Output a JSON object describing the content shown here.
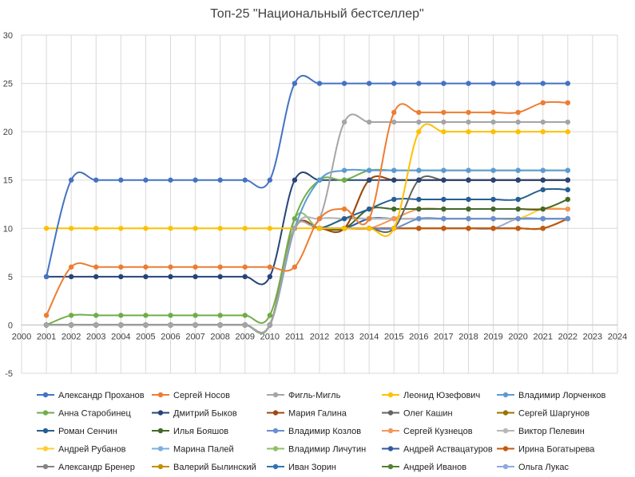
{
  "chart_data": {
    "type": "line",
    "title": "Топ-25 \"Национальный бестселлер\"",
    "xlabel": "",
    "ylabel": "",
    "xlim": [
      2000,
      2024
    ],
    "ylim": [
      -5,
      30
    ],
    "x_ticks": [
      2000,
      2001,
      2002,
      2003,
      2004,
      2005,
      2006,
      2007,
      2008,
      2009,
      2010,
      2011,
      2012,
      2013,
      2014,
      2015,
      2016,
      2017,
      2018,
      2019,
      2020,
      2021,
      2022,
      2023,
      2024
    ],
    "y_ticks": [
      -5,
      0,
      5,
      10,
      15,
      20,
      25,
      30
    ],
    "grid": true,
    "legend_position": "bottom",
    "x": [
      2001,
      2002,
      2003,
      2004,
      2005,
      2006,
      2007,
      2008,
      2009,
      2010,
      2011,
      2012,
      2013,
      2014,
      2015,
      2016,
      2017,
      2018,
      2019,
      2020,
      2021,
      2022
    ],
    "series": [
      {
        "name": "Александр Проханов",
        "color": "#4472C4",
        "values": [
          5,
          15,
          15,
          15,
          15,
          15,
          15,
          15,
          15,
          15,
          25,
          25,
          25,
          25,
          25,
          25,
          25,
          25,
          25,
          25,
          25,
          25
        ]
      },
      {
        "name": "Сергей Носов",
        "color": "#ED7D31",
        "values": [
          1,
          6,
          6,
          6,
          6,
          6,
          6,
          6,
          6,
          6,
          6,
          11,
          12,
          11,
          22,
          22,
          22,
          22,
          22,
          22,
          23,
          23
        ]
      },
      {
        "name": "Фигль-Мигль",
        "color": "#A5A5A5",
        "values": [
          0,
          0,
          0,
          0,
          0,
          0,
          0,
          0,
          0,
          0,
          10,
          11,
          21,
          21,
          21,
          21,
          21,
          21,
          21,
          21,
          21,
          21
        ]
      },
      {
        "name": "Леонид Юзефович",
        "color": "#FFC000",
        "values": [
          10,
          10,
          10,
          10,
          10,
          10,
          10,
          10,
          10,
          10,
          10,
          10,
          10,
          10,
          10,
          20,
          20,
          20,
          20,
          20,
          20,
          20
        ]
      },
      {
        "name": "Владимир Лорченков",
        "color": "#5B9BD5",
        "values": [
          0,
          0,
          0,
          0,
          0,
          0,
          0,
          0,
          0,
          0,
          10,
          15,
          16,
          16,
          16,
          16,
          16,
          16,
          16,
          16,
          16,
          16
        ]
      },
      {
        "name": "Анна Старобинец",
        "color": "#70AD47",
        "values": [
          0,
          1,
          1,
          1,
          1,
          1,
          1,
          1,
          1,
          1,
          11,
          15,
          15,
          16,
          16,
          16,
          16,
          16,
          16,
          16,
          16,
          16
        ]
      },
      {
        "name": "Дмитрий Быков",
        "color": "#264478",
        "values": [
          5,
          5,
          5,
          5,
          5,
          5,
          5,
          5,
          5,
          5,
          15,
          15,
          15,
          15,
          15,
          15,
          15,
          15,
          15,
          15,
          15,
          15
        ]
      },
      {
        "name": "Мария Галина",
        "color": "#9E480E",
        "values": [
          0,
          0,
          0,
          0,
          0,
          0,
          0,
          0,
          0,
          0,
          10,
          10,
          10,
          15,
          15,
          15,
          15,
          15,
          15,
          15,
          15,
          15
        ]
      },
      {
        "name": "Олег Кашин",
        "color": "#636363",
        "values": [
          0,
          0,
          0,
          0,
          0,
          0,
          0,
          0,
          0,
          0,
          10,
          10,
          10,
          10,
          10,
          15,
          15,
          15,
          15,
          15,
          15,
          15
        ]
      },
      {
        "name": "Сергей Шаргунов",
        "color": "#997300",
        "values": [
          0,
          0,
          0,
          0,
          0,
          0,
          0,
          0,
          0,
          0,
          10,
          10,
          10,
          15,
          15,
          15,
          15,
          15,
          15,
          15,
          15,
          15
        ]
      },
      {
        "name": "Роман Сенчин",
        "color": "#255E91",
        "values": [
          0,
          0,
          0,
          0,
          0,
          0,
          0,
          0,
          0,
          0,
          10,
          10,
          11,
          12,
          13,
          13,
          13,
          13,
          13,
          13,
          14,
          14
        ]
      },
      {
        "name": "Илья Бояшов",
        "color": "#43682B",
        "values": [
          0,
          0,
          0,
          0,
          0,
          0,
          0,
          0,
          0,
          0,
          10,
          10,
          10,
          12,
          12,
          12,
          12,
          12,
          12,
          12,
          12,
          13
        ]
      },
      {
        "name": "Владимир Козлов",
        "color": "#698ED0",
        "values": [
          0,
          0,
          0,
          0,
          0,
          0,
          0,
          0,
          0,
          0,
          10,
          10,
          10,
          10,
          10,
          11,
          11,
          11,
          11,
          11,
          11,
          11
        ]
      },
      {
        "name": "Сергей Кузнецов",
        "color": "#F1975A",
        "values": [
          0,
          0,
          0,
          0,
          0,
          0,
          0,
          0,
          0,
          0,
          10,
          10,
          10,
          10,
          11,
          12,
          12,
          12,
          12,
          12,
          12,
          12
        ]
      },
      {
        "name": "Виктор Пелевин",
        "color": "#B7B7B7",
        "values": [
          0,
          0,
          0,
          0,
          0,
          0,
          0,
          0,
          0,
          0,
          10,
          11,
          11,
          11,
          11,
          11,
          11,
          11,
          11,
          11,
          11,
          11
        ]
      },
      {
        "name": "Андрей Рубанов",
        "color": "#FFCD33",
        "values": [
          0,
          0,
          0,
          0,
          0,
          0,
          0,
          0,
          0,
          0,
          10,
          10,
          10,
          10,
          10,
          11,
          11,
          11,
          11,
          11,
          12,
          12
        ]
      },
      {
        "name": "Марина Палей",
        "color": "#7CAFDD",
        "values": [
          0,
          0,
          0,
          0,
          0,
          0,
          0,
          0,
          0,
          0,
          10,
          11,
          11,
          11,
          11,
          11,
          11,
          11,
          11,
          11,
          11,
          11
        ]
      },
      {
        "name": "Владимир Личутин",
        "color": "#8CC168",
        "values": [
          0,
          0,
          0,
          0,
          0,
          0,
          0,
          0,
          0,
          0,
          11,
          10,
          11,
          11,
          11,
          11,
          11,
          11,
          11,
          11,
          11,
          11
        ]
      },
      {
        "name": "Андрей Аствацатуров",
        "color": "#335AA1",
        "values": [
          0,
          0,
          0,
          0,
          0,
          0,
          0,
          0,
          0,
          0,
          10,
          10,
          10,
          11,
          11,
          11,
          11,
          11,
          11,
          11,
          11,
          11
        ]
      },
      {
        "name": "Ирина Богатырева",
        "color": "#C55A11",
        "values": [
          0,
          0,
          0,
          0,
          0,
          0,
          0,
          0,
          0,
          0,
          10,
          10,
          10,
          10,
          10,
          10,
          10,
          10,
          10,
          10,
          10,
          11
        ]
      },
      {
        "name": "Александр Бренер",
        "color": "#848484",
        "values": [
          0,
          0,
          0,
          0,
          0,
          0,
          0,
          0,
          0,
          0,
          10,
          10,
          10,
          10,
          10,
          10,
          10,
          10,
          10,
          10,
          10,
          11
        ]
      },
      {
        "name": "Валерий Былинский",
        "color": "#BF9000",
        "values": [
          0,
          0,
          0,
          0,
          0,
          0,
          0,
          0,
          0,
          0,
          10,
          10,
          10,
          10,
          10,
          10,
          10,
          10,
          10,
          10,
          10,
          11
        ]
      },
      {
        "name": "Иван Зорин",
        "color": "#2E75B6",
        "values": [
          0,
          0,
          0,
          0,
          0,
          0,
          0,
          0,
          0,
          0,
          10,
          10,
          10,
          11,
          11,
          11,
          11,
          11,
          11,
          11,
          11,
          11
        ]
      },
      {
        "name": "Андрей Иванов",
        "color": "#548235",
        "values": [
          0,
          0,
          0,
          0,
          0,
          0,
          0,
          0,
          0,
          0,
          10,
          10,
          10,
          10,
          10,
          10,
          10,
          10,
          10,
          10,
          10,
          11
        ]
      },
      {
        "name": "Ольга Лукас",
        "color": "#8FAADC",
        "values": [
          0,
          0,
          0,
          0,
          0,
          0,
          0,
          0,
          0,
          0,
          10,
          10,
          10,
          10,
          10,
          10,
          10,
          10,
          10,
          11,
          11,
          11
        ]
      }
    ]
  }
}
